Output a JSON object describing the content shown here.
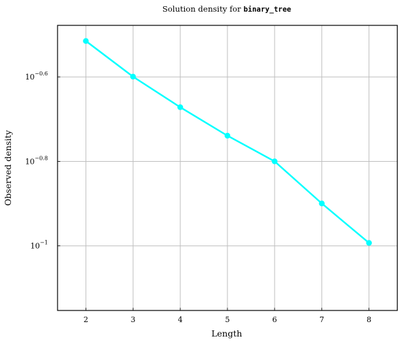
{
  "chart_data": {
    "type": "line",
    "title_prefix": "Solution density for ",
    "title_code": "binary_tree",
    "xlabel": "Length",
    "ylabel": "Observed density",
    "x_scale": "linear",
    "y_scale": "log",
    "xlim": [
      1.4,
      8.6
    ],
    "ylim": [
      -1.153,
      -0.478
    ],
    "x_ticks": [
      "2",
      "3",
      "4",
      "5",
      "6",
      "7",
      "8"
    ],
    "y_ticks": [
      {
        "value": -0.6,
        "base": "10",
        "exp": "−0.6"
      },
      {
        "value": -0.8,
        "base": "10",
        "exp": "−0.8"
      },
      {
        "value": -1.0,
        "base": "10",
        "exp": "−1"
      }
    ],
    "grid": true,
    "series": [
      {
        "color": "#00ffff",
        "x": [
          2,
          3,
          4,
          5,
          6,
          7,
          8
        ],
        "y": [
          0.3055,
          0.2515,
          0.2129,
          0.1823,
          0.1585,
          0.126,
          0.1016
        ]
      }
    ]
  }
}
